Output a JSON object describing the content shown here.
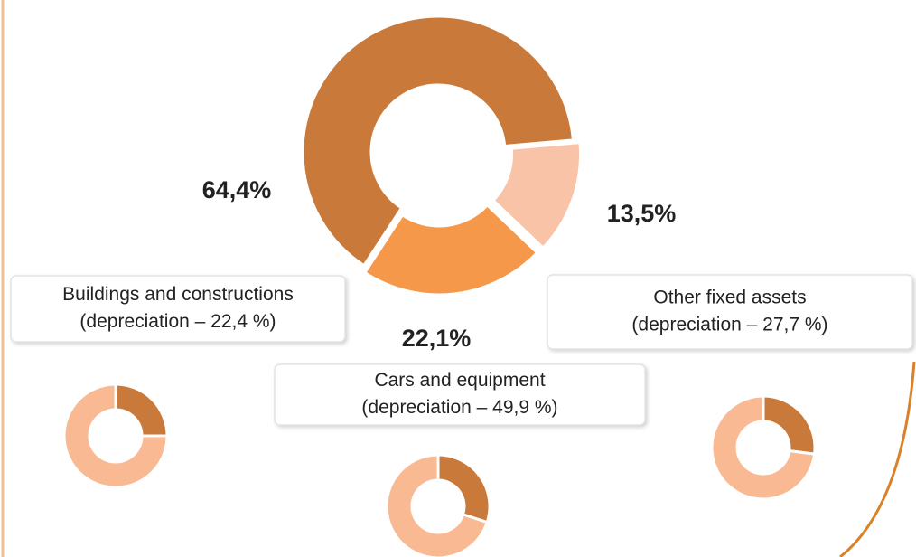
{
  "chart_data": [
    {
      "type": "donut",
      "categories": [
        "Buildings and constructions",
        "Cars and equipment",
        "Other fixed assets"
      ],
      "notes": [
        "(depreciation – 22,4 %)",
        "(depreciation – 49,9 %)",
        "(depreciation – 27,7 %)"
      ],
      "values": [
        64.4,
        22.1,
        13.5
      ],
      "value_labels": [
        "64,4%",
        "22,1%",
        "13,5%"
      ],
      "colors": [
        "#c97a3a",
        "#f5984a",
        "#f8c3a6"
      ]
    },
    {
      "type": "donut",
      "values": [
        25,
        75
      ],
      "colors": [
        "#c97a3a",
        "#f8b993"
      ]
    },
    {
      "type": "donut",
      "values": [
        30,
        70
      ],
      "colors": [
        "#c97a3a",
        "#f8b993"
      ]
    },
    {
      "type": "donut",
      "values": [
        27,
        73
      ],
      "colors": [
        "#c97a3a",
        "#f8b993"
      ]
    }
  ]
}
